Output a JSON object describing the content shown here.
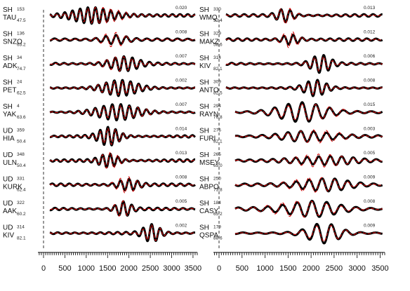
{
  "chart_data": {
    "type": "line",
    "x_ticks": [
      0,
      500,
      1000,
      1500,
      2000,
      2500,
      3000,
      3500
    ],
    "xlim": [
      0,
      3600
    ],
    "series_style": {
      "observed": "#000000",
      "synthetic": "#d00000"
    },
    "panels": [
      {
        "traces": [
          {
            "comp": "SH",
            "station": "TAU",
            "azimuth": "153",
            "distance": "47.5",
            "amplitude": "0.020",
            "t0": 150,
            "t1": 3550,
            "tc": 1300,
            "period": 180,
            "width": 1300,
            "amp": 1.0
          },
          {
            "comp": "SH",
            "station": "SNZO",
            "azimuth": "136",
            "distance": "63.2",
            "amplitude": "0.008",
            "t0": 150,
            "t1": 3550,
            "tc": 1650,
            "period": 240,
            "width": 700,
            "amp": 0.9
          },
          {
            "comp": "SH",
            "station": "ADK",
            "azimuth": "34",
            "distance": "74.7",
            "amplitude": "0.007",
            "t0": 150,
            "t1": 3550,
            "tc": 1800,
            "period": 200,
            "width": 900,
            "amp": 0.9
          },
          {
            "comp": "SH",
            "station": "PET",
            "azimuth": "24",
            "distance": "62.5",
            "amplitude": "0.002",
            "t0": 150,
            "t1": 3550,
            "tc": 1750,
            "period": 190,
            "width": 1100,
            "amp": 0.8
          },
          {
            "comp": "SH",
            "station": "YAK",
            "azimuth": "4",
            "distance": "63.6",
            "amplitude": "0.007",
            "t0": 150,
            "t1": 3550,
            "tc": 1800,
            "period": 200,
            "width": 1400,
            "amp": 0.8
          },
          {
            "comp": "UD",
            "station": "HIA",
            "azimuth": "359",
            "distance": "50.4",
            "amplitude": "0.014",
            "t0": 150,
            "t1": 3550,
            "tc": 1550,
            "period": 180,
            "width": 600,
            "amp": 1.0
          },
          {
            "comp": "UD",
            "station": "ULN",
            "azimuth": "348",
            "distance": "50.4",
            "amplitude": "0.013",
            "t0": 150,
            "t1": 3550,
            "tc": 1550,
            "period": 180,
            "width": 550,
            "amp": 1.0
          },
          {
            "comp": "UD",
            "station": "KURK",
            "azimuth": "331",
            "distance": "62.4",
            "amplitude": "0.008",
            "t0": 150,
            "t1": 3550,
            "tc": 1950,
            "period": 200,
            "width": 600,
            "amp": 1.0
          },
          {
            "comp": "UD",
            "station": "AAK",
            "azimuth": "322",
            "distance": "60.2",
            "amplitude": "0.005",
            "t0": 150,
            "t1": 3550,
            "tc": 1850,
            "period": 200,
            "width": 450,
            "amp": 1.0
          },
          {
            "comp": "UD",
            "station": "KIV",
            "azimuth": "314",
            "distance": "82.1",
            "amplitude": "0.002",
            "t0": 150,
            "t1": 3550,
            "tc": 2550,
            "period": 200,
            "width": 500,
            "amp": 1.0
          }
        ]
      },
      {
        "traces": [
          {
            "comp": "SH",
            "station": "WMQ",
            "azimuth": "330",
            "distance": "52.4",
            "amplitude": "0.013",
            "t0": 150,
            "t1": 3550,
            "tc": 1450,
            "period": 200,
            "width": 450,
            "amp": 1.0
          },
          {
            "comp": "SH",
            "station": "MAKZ",
            "azimuth": "329",
            "distance": "58.6",
            "amplitude": "0.012",
            "t0": 150,
            "t1": 3550,
            "tc": 1550,
            "period": 200,
            "width": 450,
            "amp": 1.0
          },
          {
            "comp": "SH",
            "station": "KIV",
            "azimuth": "314",
            "distance": "82.1",
            "amplitude": "0.006",
            "t0": 150,
            "t1": 3550,
            "tc": 2200,
            "period": 200,
            "width": 550,
            "amp": 0.9
          },
          {
            "comp": "SH",
            "station": "ANTO",
            "azimuth": "309",
            "distance": "82.5",
            "amplitude": "0.008",
            "t0": 150,
            "t1": 3550,
            "tc": 2100,
            "period": 200,
            "width": 600,
            "amp": 0.8
          },
          {
            "comp": "SH",
            "station": "RAYN",
            "azimuth": "294",
            "distance": "76.8",
            "amplitude": "0.015",
            "t0": 350,
            "t1": 3550,
            "tc": 1900,
            "period": 300,
            "width": 1500,
            "amp": 1.0
          },
          {
            "comp": "SH",
            "station": "FURI",
            "azimuth": "276",
            "distance": "82.1",
            "amplitude": "0.003",
            "t0": 350,
            "t1": 3550,
            "tc": 2100,
            "period": 280,
            "width": 1400,
            "amp": 0.8
          },
          {
            "comp": "SH",
            "station": "MSEY",
            "azimuth": "265",
            "distance": "65.0",
            "amplitude": "0.005",
            "t0": 350,
            "t1": 3550,
            "tc": 2200,
            "period": 250,
            "width": 1400,
            "amp": 0.8
          },
          {
            "comp": "SH",
            "station": "ABPO",
            "azimuth": "250",
            "distance": "73.8",
            "amplitude": "0.009",
            "t0": 350,
            "t1": 3550,
            "tc": 2100,
            "period": 280,
            "width": 1400,
            "amp": 0.9
          },
          {
            "comp": "SH",
            "station": "CASY",
            "azimuth": "184",
            "distance": "65.2",
            "amplitude": "0.008",
            "t0": 350,
            "t1": 3550,
            "tc": 1800,
            "period": 320,
            "width": 1600,
            "amp": 1.0
          },
          {
            "comp": "SH",
            "station": "QSPA",
            "azimuth": "179",
            "distance": "88.6",
            "amplitude": "0.009",
            "t0": 350,
            "t1": 3550,
            "tc": 2300,
            "period": 320,
            "width": 900,
            "amp": 1.0
          }
        ]
      }
    ]
  }
}
